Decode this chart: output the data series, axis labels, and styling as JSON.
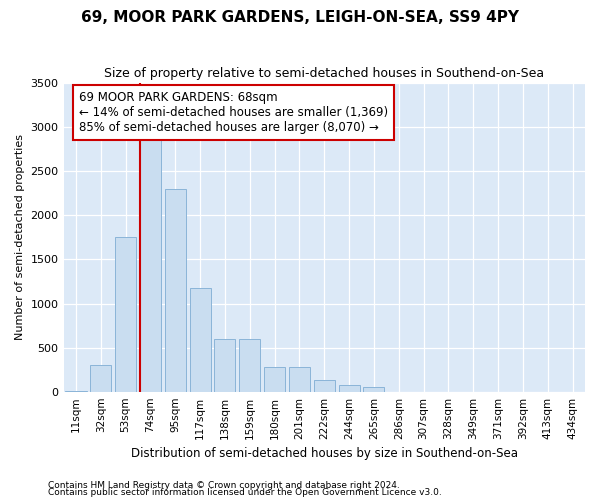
{
  "title": "69, MOOR PARK GARDENS, LEIGH-ON-SEA, SS9 4PY",
  "subtitle": "Size of property relative to semi-detached houses in Southend-on-Sea",
  "xlabel": "Distribution of semi-detached houses by size in Southend-on-Sea",
  "ylabel": "Number of semi-detached properties",
  "footnote1": "Contains HM Land Registry data © Crown copyright and database right 2024.",
  "footnote2": "Contains public sector information licensed under the Open Government Licence v3.0.",
  "categories": [
    "11sqm",
    "32sqm",
    "53sqm",
    "74sqm",
    "95sqm",
    "117sqm",
    "138sqm",
    "159sqm",
    "180sqm",
    "201sqm",
    "222sqm",
    "244sqm",
    "265sqm",
    "286sqm",
    "307sqm",
    "328sqm",
    "349sqm",
    "371sqm",
    "392sqm",
    "413sqm",
    "434sqm"
  ],
  "values": [
    5,
    300,
    1750,
    2900,
    2300,
    1175,
    600,
    600,
    280,
    280,
    130,
    75,
    55,
    0,
    0,
    0,
    0,
    0,
    0,
    0,
    0
  ],
  "bar_color": "#c9ddf0",
  "bar_edge_color": "#8ab4d8",
  "vline_color": "#cc0000",
  "vline_x": 2.57,
  "annotation_line1": "69 MOOR PARK GARDENS: 68sqm",
  "annotation_line2": "← 14% of semi-detached houses are smaller (1,369)",
  "annotation_line3": "85% of semi-detached houses are larger (8,070) →",
  "ylim_max": 3500,
  "bg_color": "#ffffff",
  "plot_bg_color": "#dce9f7",
  "title_fontsize": 11,
  "subtitle_fontsize": 9,
  "tick_fontsize": 7.5,
  "ytick_fontsize": 8,
  "xlabel_fontsize": 8.5,
  "ylabel_fontsize": 8,
  "footnote_fontsize": 6.5,
  "ann_fontsize": 8.5
}
